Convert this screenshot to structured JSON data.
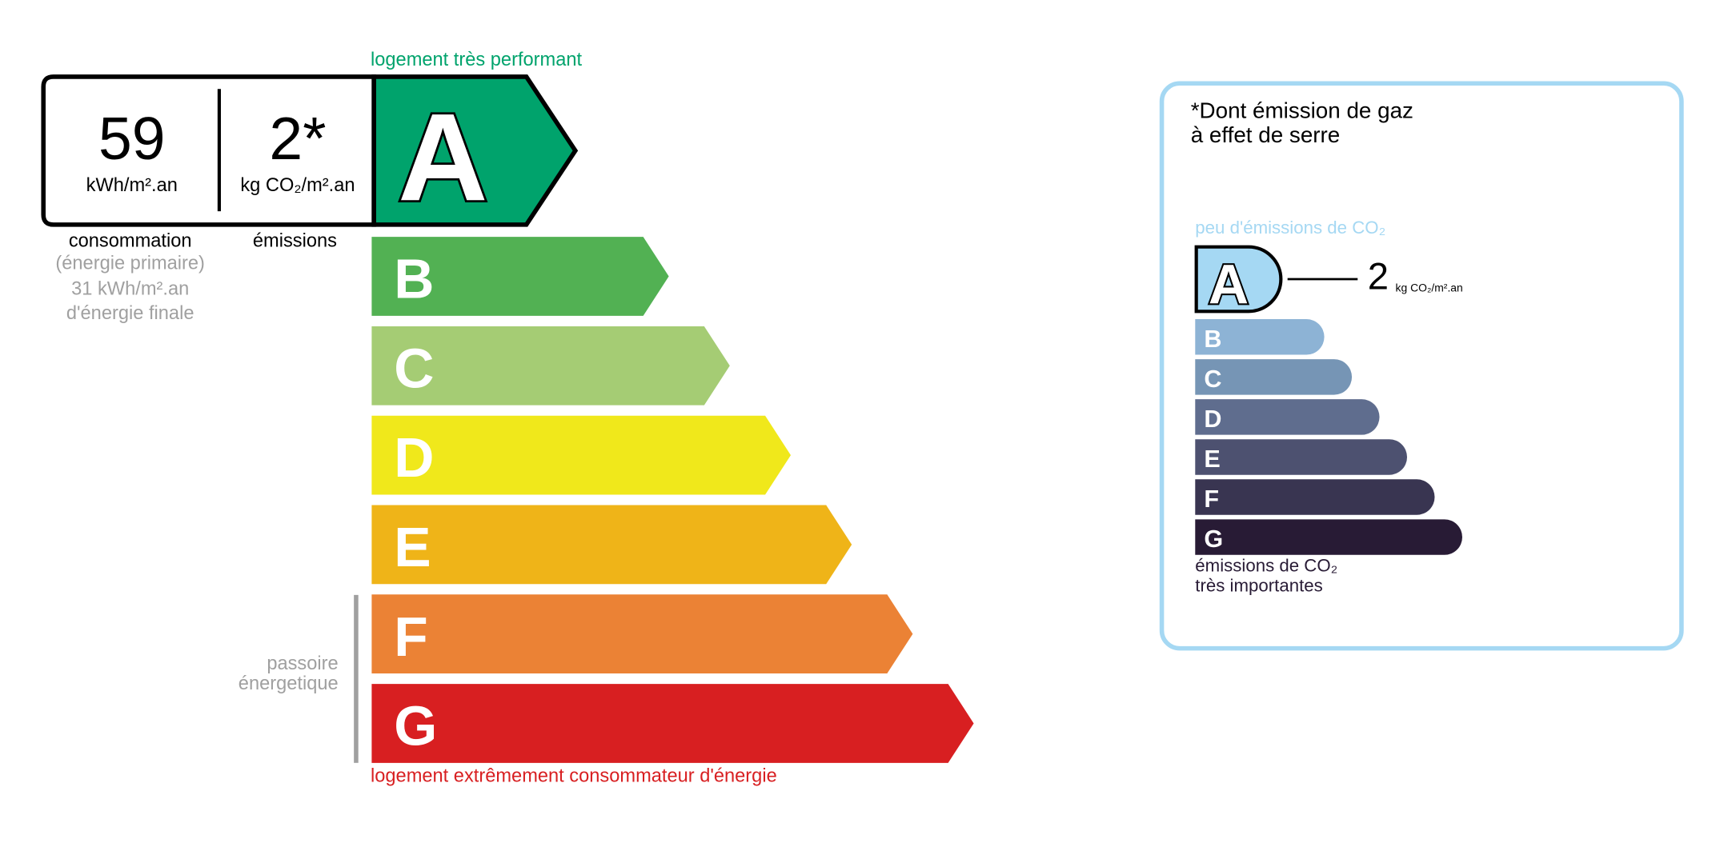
{
  "energy": {
    "top_label": "logement très performant",
    "bottom_label": "logement extrêmement consommateur d'énergie",
    "passoire_label": [
      "passoire",
      "énergetique"
    ],
    "current_class": "A",
    "consumption": {
      "value": "59",
      "unit": "kWh/m².an",
      "label": "consommation",
      "sublabel": "(énergie primaire)",
      "final_value": "31 kWh/m².an",
      "final_label": "d'énergie finale"
    },
    "emissions": {
      "value": "2*",
      "unit": "kg CO₂/m².an",
      "label": "émissions"
    },
    "classes": [
      {
        "letter": "A",
        "color": "#00a36c"
      },
      {
        "letter": "B",
        "color": "#52b153"
      },
      {
        "letter": "C",
        "color": "#a5cc74"
      },
      {
        "letter": "D",
        "color": "#f0e81b"
      },
      {
        "letter": "E",
        "color": "#efb418"
      },
      {
        "letter": "F",
        "color": "#eb8235"
      },
      {
        "letter": "G",
        "color": "#d81f21"
      }
    ],
    "top_label_color": "#00a36c",
    "bottom_label_color": "#d81f21"
  },
  "ges": {
    "title_line1": "*Dont émission de gaz",
    "title_line2": "à effet de serre",
    "top_label": "peu d'émissions de CO₂",
    "bottom_label_line1": "émissions de CO₂",
    "bottom_label_line2": "très importantes",
    "current_class": "A",
    "value": "2",
    "unit": "kg CO₂/m².an",
    "border_color": "#a5d8f3",
    "classes": [
      {
        "letter": "A",
        "color": "#a5d8f3"
      },
      {
        "letter": "B",
        "color": "#8db3d5"
      },
      {
        "letter": "C",
        "color": "#7695b5"
      },
      {
        "letter": "D",
        "color": "#5f6d8e"
      },
      {
        "letter": "E",
        "color": "#4d5170"
      },
      {
        "letter": "F",
        "color": "#393551"
      },
      {
        "letter": "G",
        "color": "#281b35"
      }
    ]
  }
}
